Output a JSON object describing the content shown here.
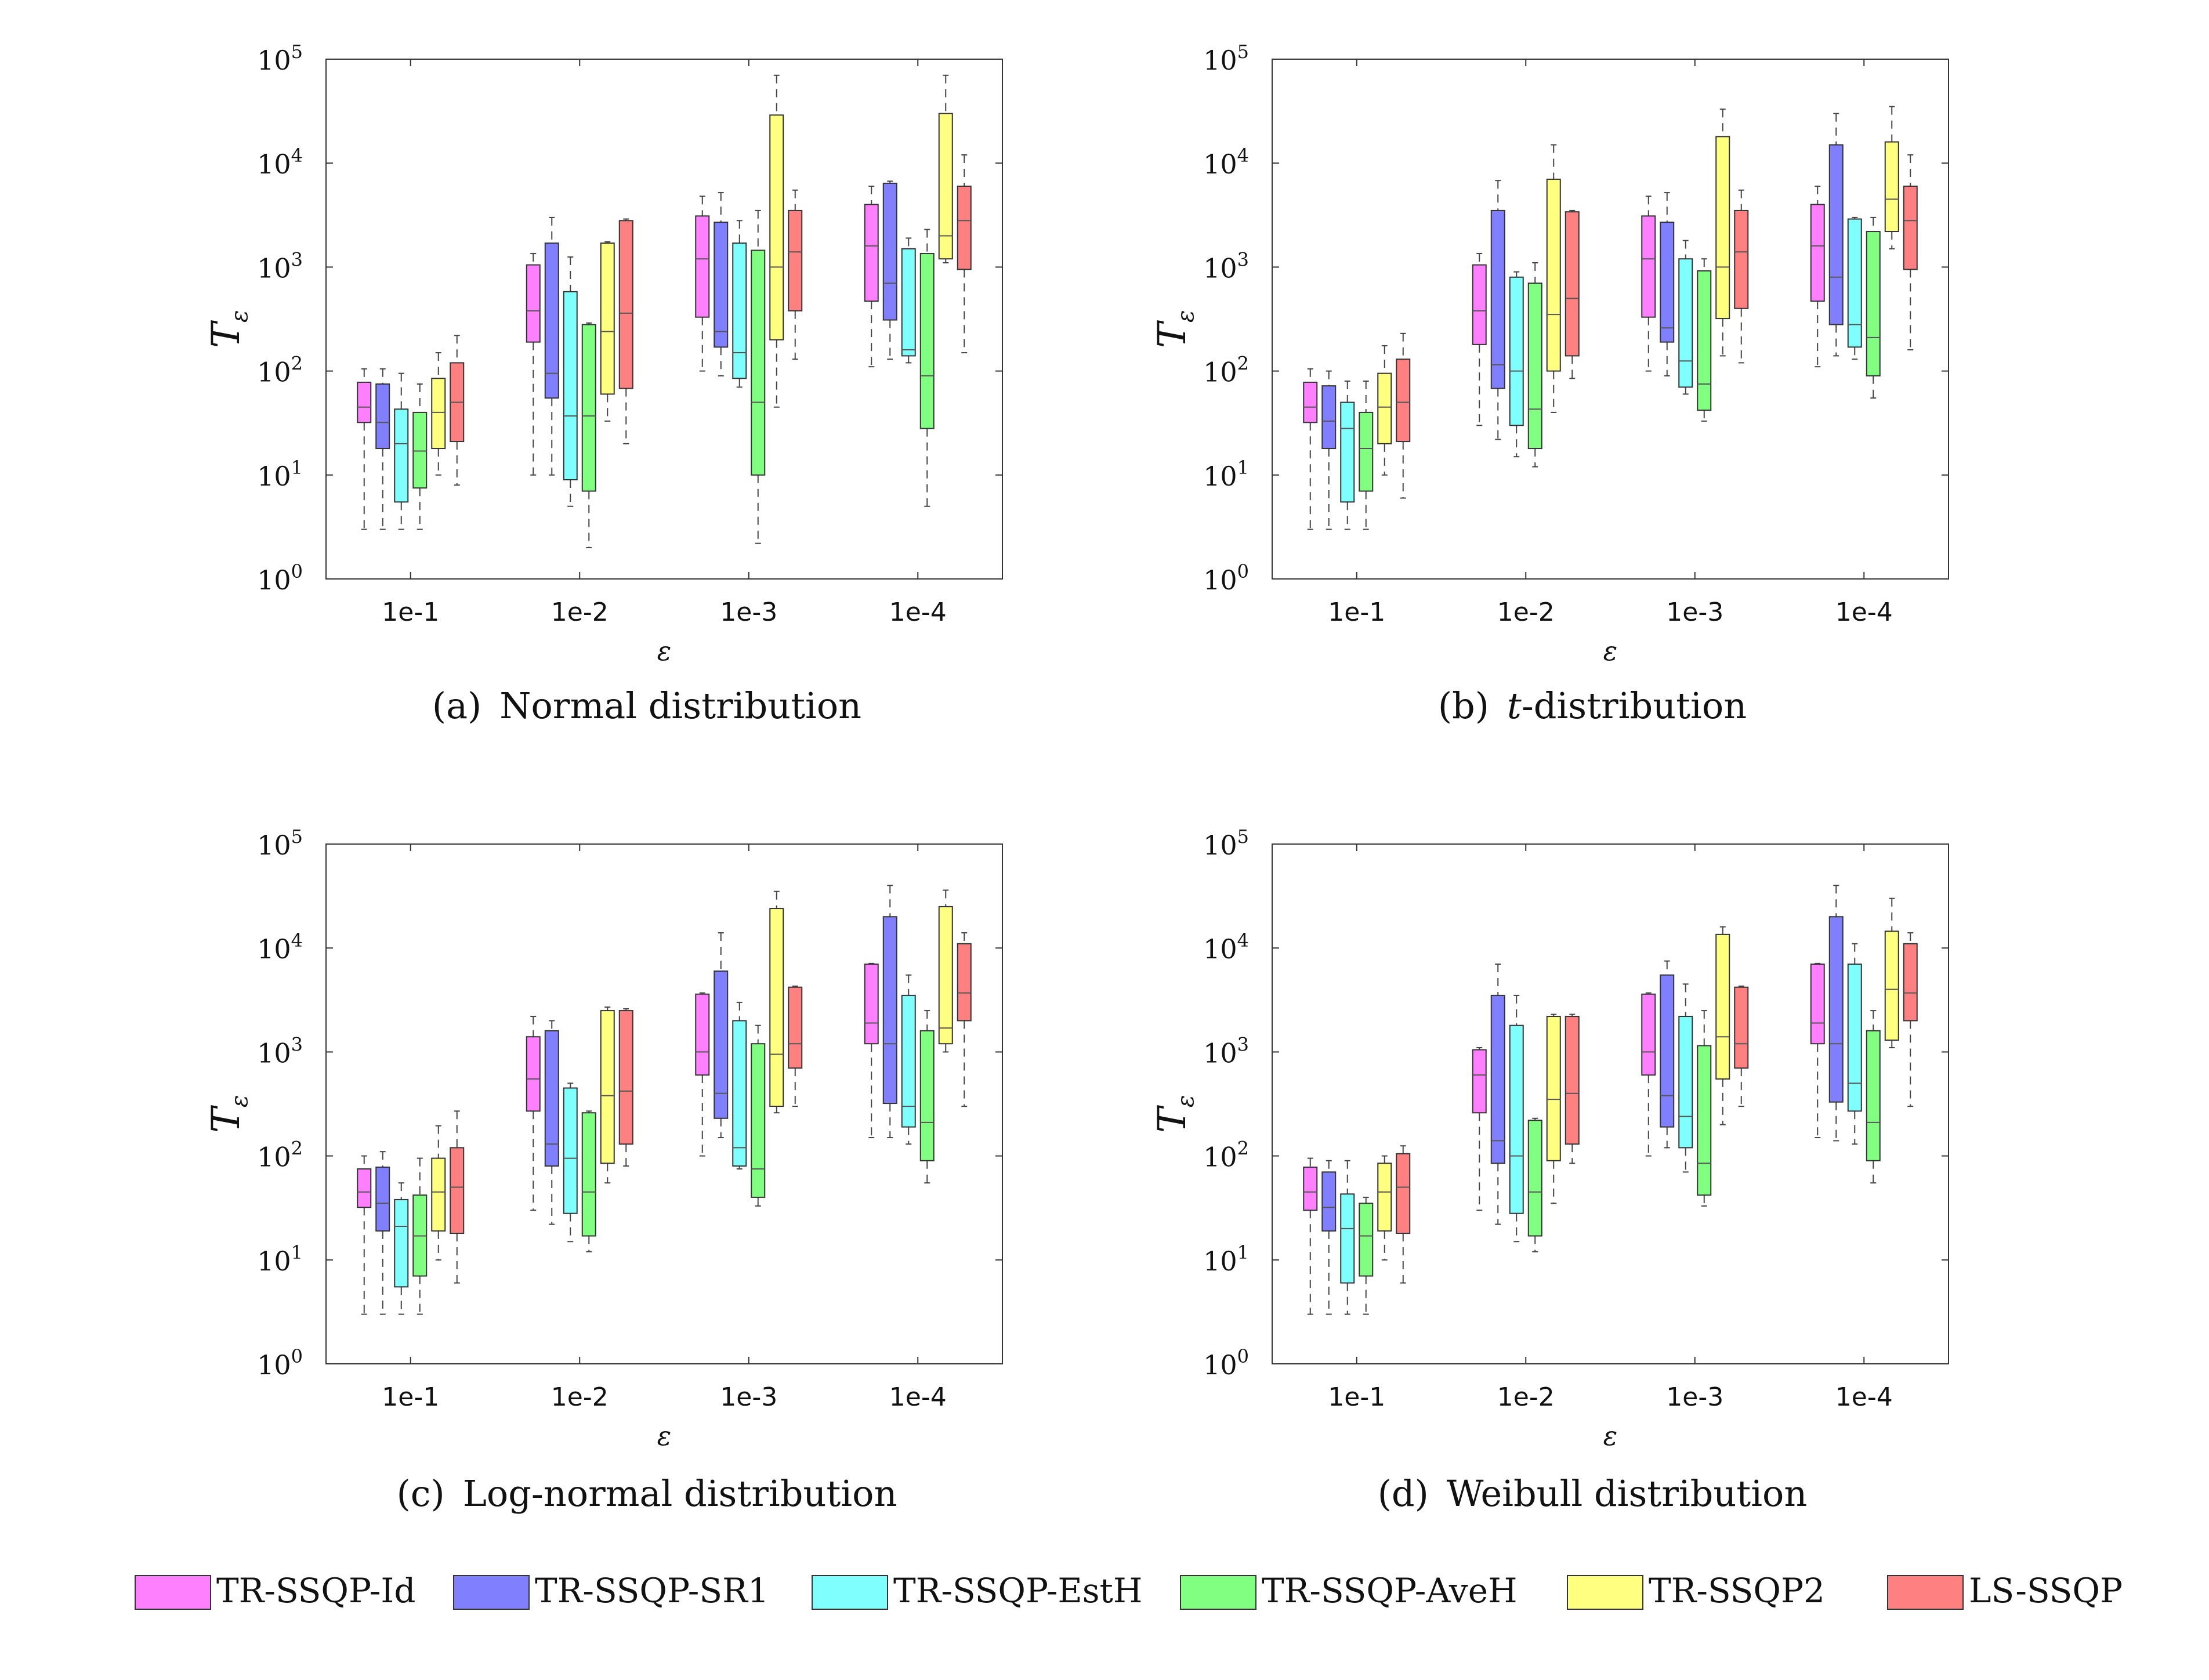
{
  "legend": [
    {
      "name": "TR-SSQP-Id",
      "color": "#ff80ff"
    },
    {
      "name": "TR-SSQP-SR1",
      "color": "#8080ff"
    },
    {
      "name": "TR-SSQP-EstH",
      "color": "#80ffff"
    },
    {
      "name": "TR-SSQP-AveH",
      "color": "#80ff80"
    },
    {
      "name": "TR-SSQP2",
      "color": "#ffff80"
    },
    {
      "name": "LS-SSQP",
      "color": "#ff8080"
    }
  ],
  "chart_data": [
    {
      "type": "box",
      "caption_label": "(a)",
      "caption_text": "Normal distribution",
      "xlabel": "ε",
      "ylabel_base": "T",
      "ylabel_sub": "ε",
      "yscale": "log",
      "ylim": [
        1,
        100000
      ],
      "y_ticks": [
        {
          "base": "10",
          "exp": "0"
        },
        {
          "base": "10",
          "exp": "1"
        },
        {
          "base": "10",
          "exp": "2"
        },
        {
          "base": "10",
          "exp": "3"
        },
        {
          "base": "10",
          "exp": "4"
        },
        {
          "base": "10",
          "exp": "5"
        }
      ],
      "categories": [
        "1e-1",
        "1e-2",
        "1e-3",
        "1e-4"
      ],
      "series": [
        {
          "name": "TR-SSQP-Id",
          "boxes": [
            [
              3,
              32,
              45,
              78,
              105
            ],
            [
              10,
              190,
              380,
              1050,
              1350
            ],
            [
              100,
              330,
              1200,
              3100,
              4800
            ],
            [
              110,
              470,
              1600,
              4000,
              6000
            ]
          ]
        },
        {
          "name": "TR-SSQP-SR1",
          "boxes": [
            [
              3,
              18,
              32,
              75,
              105
            ],
            [
              10,
              55,
              95,
              1700,
              3000
            ],
            [
              90,
              170,
              240,
              2700,
              5200
            ],
            [
              130,
              310,
              700,
              6400,
              6700
            ]
          ]
        },
        {
          "name": "TR-SSQP-EstH",
          "boxes": [
            [
              3,
              5.5,
              20,
              43,
              95
            ],
            [
              5,
              9,
              37,
              580,
              1250
            ],
            [
              70,
              85,
              150,
              1700,
              2800
            ],
            [
              120,
              140,
              160,
              1500,
              1900
            ]
          ]
        },
        {
          "name": "TR-SSQP-AveH",
          "boxes": [
            [
              3,
              7.5,
              17,
              40,
              75
            ],
            [
              2,
              7,
              37,
              280,
              290
            ],
            [
              2.2,
              10,
              50,
              1450,
              3500
            ],
            [
              5,
              28,
              90,
              1350,
              2300
            ]
          ]
        },
        {
          "name": "TR-SSQP2",
          "boxes": [
            [
              10,
              18,
              40,
              85,
              150
            ],
            [
              33,
              60,
              240,
              1700,
              1750
            ],
            [
              45,
              200,
              1000,
              29000,
              70000
            ],
            [
              1100,
              1200,
              2000,
              30000,
              70000
            ]
          ]
        },
        {
          "name": "LS-SSQP",
          "boxes": [
            [
              8,
              21,
              50,
              120,
              220
            ],
            [
              20,
              68,
              360,
              2800,
              2900
            ],
            [
              130,
              380,
              1400,
              3500,
              5500
            ],
            [
              150,
              950,
              2800,
              6000,
              12000
            ]
          ]
        }
      ]
    },
    {
      "type": "box",
      "caption_label": "(b)",
      "caption_italic": "t",
      "caption_text": "-distribution",
      "xlabel": "ε",
      "ylabel_base": "T",
      "ylabel_sub": "ε",
      "yscale": "log",
      "ylim": [
        1,
        100000
      ],
      "y_ticks": [
        {
          "base": "10",
          "exp": "0"
        },
        {
          "base": "10",
          "exp": "1"
        },
        {
          "base": "10",
          "exp": "2"
        },
        {
          "base": "10",
          "exp": "3"
        },
        {
          "base": "10",
          "exp": "4"
        },
        {
          "base": "10",
          "exp": "5"
        }
      ],
      "categories": [
        "1e-1",
        "1e-2",
        "1e-3",
        "1e-4"
      ],
      "series": [
        {
          "name": "TR-SSQP-Id",
          "boxes": [
            [
              3,
              32,
              45,
              78,
              105
            ],
            [
              30,
              180,
              380,
              1050,
              1350
            ],
            [
              100,
              330,
              1200,
              3100,
              4800
            ],
            [
              110,
              470,
              1600,
              4000,
              6000
            ]
          ]
        },
        {
          "name": "TR-SSQP-SR1",
          "boxes": [
            [
              3,
              18,
              33,
              72,
              100
            ],
            [
              22,
              68,
              115,
              3500,
              6800
            ],
            [
              90,
              190,
              260,
              2700,
              5200
            ],
            [
              140,
              280,
              800,
              15000,
              30000
            ]
          ]
        },
        {
          "name": "TR-SSQP-EstH",
          "boxes": [
            [
              3,
              5.5,
              28,
              50,
              80
            ],
            [
              15,
              30,
              100,
              800,
              900
            ],
            [
              60,
              70,
              125,
              1200,
              1800
            ],
            [
              130,
              170,
              280,
              2900,
              3000
            ]
          ]
        },
        {
          "name": "TR-SSQP-AveH",
          "boxes": [
            [
              3,
              7,
              18,
              40,
              80
            ],
            [
              12,
              18,
              43,
              700,
              1100
            ],
            [
              33,
              42,
              75,
              920,
              1200
            ],
            [
              55,
              90,
              210,
              2200,
              3000
            ]
          ]
        },
        {
          "name": "TR-SSQP2",
          "boxes": [
            [
              10,
              20,
              45,
              95,
              175
            ],
            [
              40,
              100,
              350,
              7000,
              15000
            ],
            [
              140,
              320,
              1000,
              18000,
              33000
            ],
            [
              1500,
              2200,
              4500,
              16000,
              35000
            ]
          ]
        },
        {
          "name": "LS-SSQP",
          "boxes": [
            [
              6,
              21,
              50,
              130,
              230
            ],
            [
              85,
              140,
              500,
              3400,
              3500
            ],
            [
              120,
              400,
              1400,
              3500,
              5500
            ],
            [
              160,
              950,
              2800,
              6000,
              12000
            ]
          ]
        }
      ]
    },
    {
      "type": "box",
      "caption_label": "(c)",
      "caption_text": "Log-normal distribution",
      "xlabel": "ε",
      "ylabel_base": "T",
      "ylabel_sub": "ε",
      "yscale": "log",
      "ylim": [
        1,
        100000
      ],
      "y_ticks": [
        {
          "base": "10",
          "exp": "0"
        },
        {
          "base": "10",
          "exp": "1"
        },
        {
          "base": "10",
          "exp": "2"
        },
        {
          "base": "10",
          "exp": "3"
        },
        {
          "base": "10",
          "exp": "4"
        },
        {
          "base": "10",
          "exp": "5"
        }
      ],
      "categories": [
        "1e-1",
        "1e-2",
        "1e-3",
        "1e-4"
      ],
      "series": [
        {
          "name": "TR-SSQP-Id",
          "boxes": [
            [
              3,
              32,
              45,
              75,
              100
            ],
            [
              30,
              270,
              550,
              1400,
              2200
            ],
            [
              100,
              600,
              1000,
              3600,
              3700
            ],
            [
              150,
              1200,
              1900,
              7000,
              7100
            ]
          ]
        },
        {
          "name": "TR-SSQP-SR1",
          "boxes": [
            [
              3,
              19,
              35,
              78,
              110
            ],
            [
              22,
              80,
              130,
              1600,
              2000
            ],
            [
              150,
              230,
              400,
              6000,
              14000
            ],
            [
              150,
              320,
              1200,
              20000,
              40000
            ]
          ]
        },
        {
          "name": "TR-SSQP-EstH",
          "boxes": [
            [
              3,
              5.5,
              21,
              38,
              55
            ],
            [
              15,
              28,
              95,
              450,
              500
            ],
            [
              75,
              80,
              120,
              2000,
              3000
            ],
            [
              130,
              190,
              300,
              3500,
              5500
            ]
          ]
        },
        {
          "name": "TR-SSQP-AveH",
          "boxes": [
            [
              3,
              7,
              17,
              42,
              95
            ],
            [
              12,
              17,
              45,
              260,
              270
            ],
            [
              33,
              40,
              75,
              1200,
              1800
            ],
            [
              55,
              90,
              210,
              1600,
              2500
            ]
          ]
        },
        {
          "name": "TR-SSQP2",
          "boxes": [
            [
              10,
              19,
              45,
              95,
              195
            ],
            [
              55,
              85,
              380,
              2500,
              2700
            ],
            [
              260,
              300,
              950,
              24000,
              35000
            ],
            [
              1000,
              1200,
              1700,
              25000,
              36000
            ]
          ]
        },
        {
          "name": "LS-SSQP",
          "boxes": [
            [
              6,
              18,
              50,
              120,
              270
            ],
            [
              80,
              130,
              420,
              2500,
              2600
            ],
            [
              300,
              700,
              1200,
              4200,
              4300
            ],
            [
              300,
              2000,
              3700,
              11000,
              14000
            ]
          ]
        }
      ]
    },
    {
      "type": "box",
      "caption_label": "(d)",
      "caption_text": "Weibull distribution",
      "xlabel": "ε",
      "ylabel_base": "T",
      "ylabel_sub": "ε",
      "yscale": "log",
      "ylim": [
        1,
        100000
      ],
      "y_ticks": [
        {
          "base": "10",
          "exp": "0"
        },
        {
          "base": "10",
          "exp": "1"
        },
        {
          "base": "10",
          "exp": "2"
        },
        {
          "base": "10",
          "exp": "3"
        },
        {
          "base": "10",
          "exp": "4"
        },
        {
          "base": "10",
          "exp": "5"
        }
      ],
      "categories": [
        "1e-1",
        "1e-2",
        "1e-3",
        "1e-4"
      ],
      "series": [
        {
          "name": "TR-SSQP-Id",
          "boxes": [
            [
              3,
              30,
              45,
              78,
              95
            ],
            [
              30,
              260,
              600,
              1050,
              1100
            ],
            [
              100,
              600,
              1000,
              3600,
              3700
            ],
            [
              150,
              1200,
              1900,
              7000,
              7100
            ]
          ]
        },
        {
          "name": "TR-SSQP-SR1",
          "boxes": [
            [
              3,
              19,
              32,
              70,
              90
            ],
            [
              22,
              85,
              140,
              3500,
              7000
            ],
            [
              120,
              190,
              380,
              5500,
              7500
            ],
            [
              140,
              330,
              1200,
              20000,
              40000
            ]
          ]
        },
        {
          "name": "TR-SSQP-EstH",
          "boxes": [
            [
              3,
              6,
              20,
              43,
              90
            ],
            [
              15,
              28,
              100,
              1800,
              3500
            ],
            [
              70,
              120,
              240,
              2200,
              4500
            ],
            [
              130,
              270,
              500,
              7000,
              11000
            ]
          ]
        },
        {
          "name": "TR-SSQP-AveH",
          "boxes": [
            [
              3,
              7,
              17,
              35,
              40
            ],
            [
              12,
              17,
              45,
              220,
              230
            ],
            [
              33,
              42,
              85,
              1150,
              2500
            ],
            [
              55,
              90,
              210,
              1600,
              2500
            ]
          ]
        },
        {
          "name": "TR-SSQP2",
          "boxes": [
            [
              10,
              19,
              45,
              85,
              100
            ],
            [
              35,
              90,
              350,
              2200,
              2300
            ],
            [
              200,
              550,
              1400,
              13500,
              16000
            ],
            [
              1100,
              1300,
              4000,
              14500,
              30000
            ]
          ]
        },
        {
          "name": "LS-SSQP",
          "boxes": [
            [
              6,
              18,
              50,
              105,
              125
            ],
            [
              85,
              130,
              400,
              2200,
              2300
            ],
            [
              300,
              700,
              1200,
              4200,
              4300
            ],
            [
              300,
              2000,
              3700,
              11000,
              14000
            ]
          ]
        }
      ]
    }
  ]
}
